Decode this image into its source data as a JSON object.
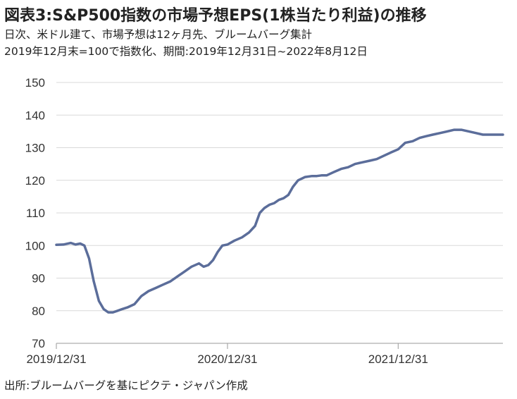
{
  "header": {
    "title": "図表3:S&P500指数の市場予想EPS(1株当たり利益)の推移",
    "subtitle_1": "日次、米ドル建て、市場予想は12ヶ月先、ブルームバーグ集計",
    "subtitle_2": "2019年12月末=100で指数化、期間:2019年12月31日~2022年8月12日"
  },
  "footer": {
    "source": "出所:ブルームバーグを基にピクテ・ジャパン作成"
  },
  "chart_data": {
    "type": "line",
    "title": "図表3:S&P500指数の市場予想EPS(1株当たり利益)の推移",
    "xlabel": "",
    "ylabel": "",
    "ylim": [
      70,
      150
    ],
    "yticks": [
      70,
      80,
      90,
      100,
      110,
      120,
      130,
      140,
      150
    ],
    "xticks": [
      "2019/12/31",
      "2020/12/31",
      "2021/12/31"
    ],
    "xlim": [
      "2019-12-31",
      "2022-08-12"
    ],
    "grid": "horizontal",
    "line_color": "#5b6d9a",
    "series": [
      {
        "x": [
          "2019-12-31",
          "2020-01-15",
          "2020-01-31",
          "2020-02-10",
          "2020-02-20",
          "2020-02-29",
          "2020-03-10",
          "2020-03-20",
          "2020-03-31",
          "2020-04-10",
          "2020-04-20",
          "2020-04-30",
          "2020-05-10",
          "2020-05-20",
          "2020-05-31",
          "2020-06-15",
          "2020-06-30",
          "2020-07-15",
          "2020-07-31",
          "2020-08-15",
          "2020-08-31",
          "2020-09-15",
          "2020-09-30",
          "2020-10-15",
          "2020-10-31",
          "2020-11-10",
          "2020-11-20",
          "2020-11-30",
          "2020-12-10",
          "2020-12-20",
          "2020-12-31",
          "2021-01-15",
          "2021-01-31",
          "2021-02-15",
          "2021-02-28",
          "2021-03-10",
          "2021-03-20",
          "2021-03-31",
          "2021-04-10",
          "2021-04-20",
          "2021-04-30",
          "2021-05-10",
          "2021-05-20",
          "2021-05-31",
          "2021-06-15",
          "2021-06-30",
          "2021-07-10",
          "2021-07-20",
          "2021-07-31",
          "2021-08-15",
          "2021-08-31",
          "2021-09-15",
          "2021-09-30",
          "2021-10-15",
          "2021-10-31",
          "2021-11-15",
          "2021-11-30",
          "2021-12-15",
          "2021-12-31",
          "2022-01-15",
          "2022-01-31",
          "2022-02-15",
          "2022-02-28",
          "2022-03-15",
          "2022-03-31",
          "2022-04-15",
          "2022-04-30",
          "2022-05-15",
          "2022-05-31",
          "2022-06-15",
          "2022-06-30",
          "2022-07-15",
          "2022-07-31",
          "2022-08-12"
        ],
        "values": [
          100.2,
          100.3,
          100.8,
          100.3,
          100.6,
          100.0,
          96.0,
          89.0,
          83.0,
          80.5,
          79.5,
          79.5,
          80.0,
          80.5,
          81.0,
          82.0,
          84.5,
          86.0,
          87.0,
          88.0,
          89.0,
          90.5,
          92.0,
          93.5,
          94.5,
          93.5,
          94.0,
          95.5,
          98.0,
          100.0,
          100.3,
          101.5,
          102.5,
          104.0,
          106.0,
          110.0,
          111.5,
          112.5,
          113.0,
          114.0,
          114.5,
          115.5,
          118.0,
          120.0,
          121.0,
          121.3,
          121.3,
          121.5,
          121.5,
          122.5,
          123.5,
          124.0,
          125.0,
          125.5,
          126.0,
          126.5,
          127.5,
          128.5,
          129.5,
          131.5,
          132.0,
          133.0,
          133.5,
          134.0,
          134.5,
          135.0,
          135.5,
          135.5,
          135.0,
          134.5,
          134.0,
          134.0,
          134.0,
          134.0
        ]
      }
    ]
  }
}
